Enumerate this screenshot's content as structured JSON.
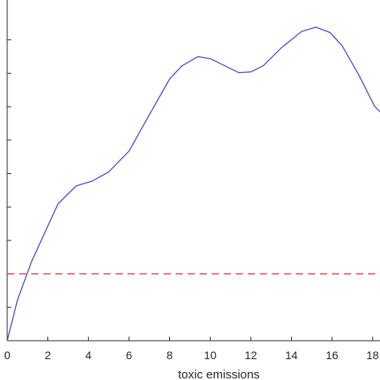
{
  "chart_data": {
    "type": "line",
    "xlabel": "toxic emissions",
    "xlim": [
      0,
      18.6
    ],
    "ylim": [
      0,
      1
    ],
    "x_ticks": [
      0,
      2,
      4,
      6,
      8,
      10,
      12,
      14,
      16,
      18
    ],
    "x_tick_labels": [
      "0",
      "2",
      "4",
      "6",
      "8",
      "10",
      "12",
      "14",
      "16",
      "18"
    ],
    "y_ticks": [
      0,
      0.1,
      0.2,
      0.3,
      0.4,
      0.5,
      0.6,
      0.7,
      0.8,
      0.9
    ],
    "grid": false,
    "series": [
      {
        "color": "#4a4ad0",
        "x": [
          0,
          0.5,
          1.2,
          2.5,
          3.4,
          4.2,
          5,
          6,
          7,
          8,
          8.6,
          9.4,
          10,
          10.6,
          11.4,
          12,
          12.6,
          13.5,
          14.5,
          15.2,
          15.9,
          16.5,
          17.3,
          18.1,
          18.6
        ],
        "y": [
          0,
          0.121,
          0.237,
          0.409,
          0.463,
          0.478,
          0.505,
          0.567,
          0.676,
          0.783,
          0.822,
          0.85,
          0.844,
          0.826,
          0.802,
          0.804,
          0.822,
          0.876,
          0.925,
          0.938,
          0.922,
          0.882,
          0.797,
          0.701,
          0.67
        ]
      }
    ],
    "reference_line": {
      "y": 0.2,
      "color": "#e03030",
      "style": "dashed"
    }
  }
}
